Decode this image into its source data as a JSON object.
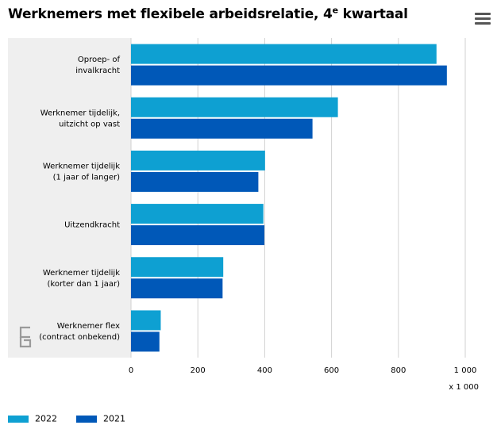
{
  "header": {
    "title_main": "Werknemers met flexibele arbeidsrelatie, 4",
    "title_sup": "e",
    "title_tail": " kwartaal"
  },
  "icons": {
    "menu": "hamburger-menu-icon",
    "logo": "cbs-logo-icon"
  },
  "chart_data": {
    "type": "bar",
    "orientation": "horizontal",
    "categories": [
      [
        "Oproep- of",
        "invalkracht"
      ],
      [
        "Werknemer tijdelijk,",
        "uitzicht op vast"
      ],
      [
        "Werknemer tijdelijk",
        "(1 jaar of langer)"
      ],
      [
        "Uitzendkracht"
      ],
      [
        "Werknemer tijdelijk",
        "(korter dan 1 jaar)"
      ],
      [
        "Werknemer flex",
        "(contract onbekend)"
      ]
    ],
    "series": [
      {
        "name": "2022",
        "color": "#0ea0d2",
        "values": [
          914,
          619,
          401,
          396,
          276,
          89
        ]
      },
      {
        "name": "2021",
        "color": "#0058b8",
        "values": [
          945,
          543,
          381,
          399,
          274,
          85
        ]
      }
    ],
    "xlim": [
      0,
      1000
    ],
    "xticks": [
      0,
      200,
      400,
      600,
      800,
      1000
    ],
    "xtick_labels": [
      "0",
      "200",
      "400",
      "600",
      "800",
      "1 000"
    ],
    "unit_label": "x 1 000",
    "grid": "vertical",
    "legend_position": "bottom-left"
  }
}
